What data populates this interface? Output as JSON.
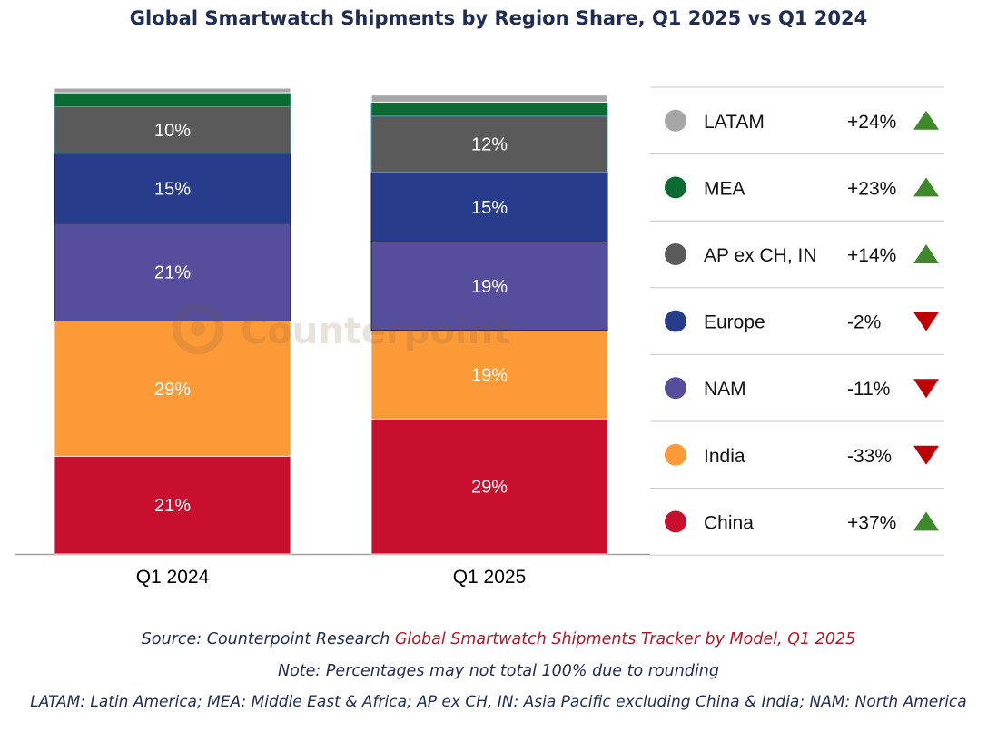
{
  "chart_data": {
    "type": "bar",
    "stacked": true,
    "title": "Global Smartwatch Shipments by Region Share, Q1 2025 vs Q1 2024",
    "categories": [
      "Q1 2024",
      "Q1 2025"
    ],
    "series": [
      {
        "name": "China",
        "color": "#c8102e",
        "values": [
          21,
          29
        ],
        "labels": [
          "21%",
          "29%"
        ]
      },
      {
        "name": "India",
        "color": "#fd9a38",
        "values": [
          29,
          19
        ],
        "labels": [
          "29%",
          "19%"
        ]
      },
      {
        "name": "NAM",
        "color": "#554e9c",
        "values": [
          21,
          19
        ],
        "labels": [
          "21%",
          "19%"
        ]
      },
      {
        "name": "Europe",
        "color": "#283c8c",
        "values": [
          15,
          15
        ],
        "labels": [
          "15%",
          "15%"
        ]
      },
      {
        "name": "AP ex CH, IN",
        "color": "#5a5a5a",
        "values": [
          10,
          12
        ],
        "labels": [
          "10%",
          "12%"
        ]
      },
      {
        "name": "MEA",
        "color": "#0b6b32",
        "values": [
          3,
          3
        ],
        "labels": [
          "",
          ""
        ]
      },
      {
        "name": "LATAM",
        "color": "#a6a6a6",
        "values": [
          1,
          1.5
        ],
        "labels": [
          "",
          ""
        ]
      }
    ],
    "legend": [
      {
        "name": "LATAM",
        "color": "#a6a6a6",
        "change": "+24%",
        "direction": "up"
      },
      {
        "name": "MEA",
        "color": "#0b6b32",
        "change": "+23%",
        "direction": "up"
      },
      {
        "name": "AP ex CH, IN",
        "color": "#5a5a5a",
        "change": "+14%",
        "direction": "up"
      },
      {
        "name": "Europe",
        "color": "#283c8c",
        "change": "-2%",
        "direction": "down"
      },
      {
        "name": "NAM",
        "color": "#554e9c",
        "change": "-11%",
        "direction": "down"
      },
      {
        "name": "India",
        "color": "#fd9a38",
        "change": "-33%",
        "direction": "down"
      },
      {
        "name": "China",
        "color": "#c8102e",
        "change": "+37%",
        "direction": "up"
      }
    ],
    "legend_position": "right",
    "up_color": "#3e8a2a",
    "down_color": "#c00000",
    "ylim": [
      0,
      100
    ]
  },
  "watermark": "Counterpoint",
  "footer": {
    "source_prefix": "Source: Counterpoint Research ",
    "source_title": "Global Smartwatch Shipments Tracker by Model, Q1 2025",
    "note": "Note: Percentages may not total 100% due to rounding",
    "abbreviations": "LATAM: Latin America; MEA: Middle East & Africa; AP ex CH, IN: Asia Pacific excluding China & India; NAM: North America"
  }
}
